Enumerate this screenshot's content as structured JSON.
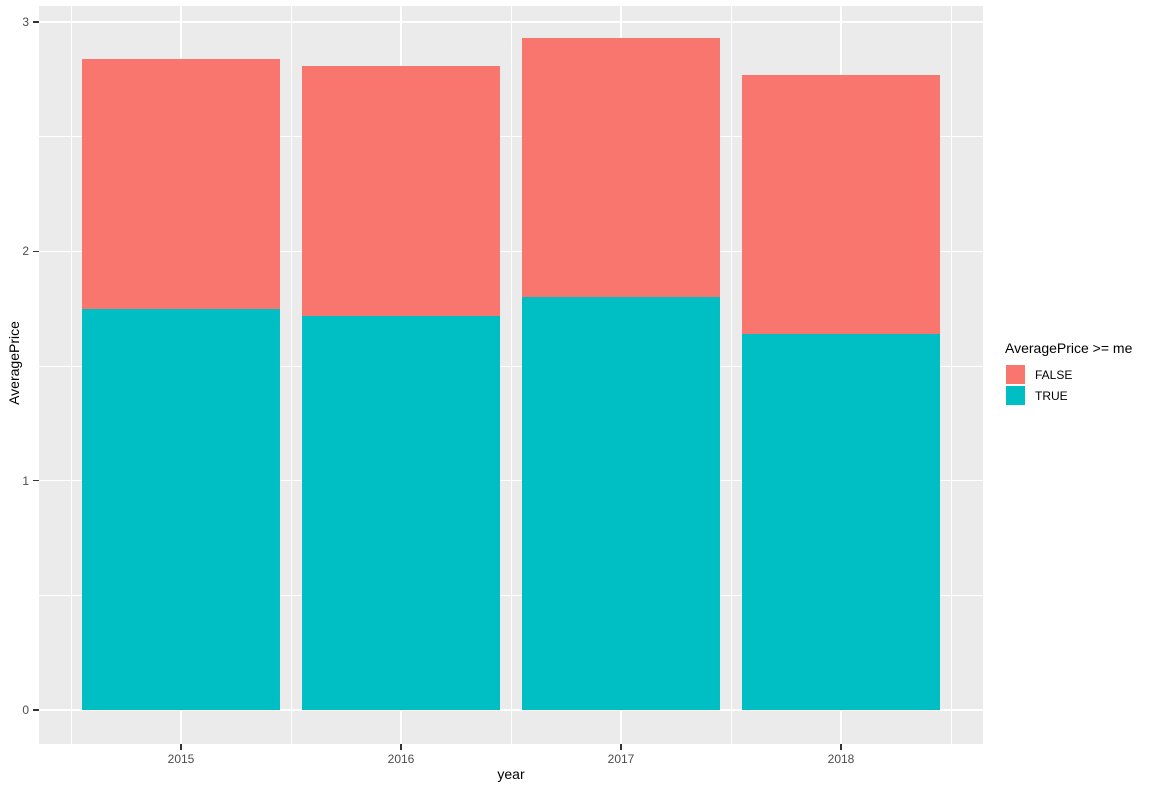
{
  "chart_data": {
    "type": "bar",
    "variant": "stacked",
    "title": "",
    "xlabel": "year",
    "ylabel": "AveragePrice",
    "categories": [
      "2015",
      "2016",
      "2017",
      "2018"
    ],
    "series": [
      {
        "name": "TRUE",
        "color": "#00BFC4",
        "values": [
          1.75,
          1.72,
          1.8,
          1.64
        ]
      },
      {
        "name": "FALSE",
        "color": "#F8766D",
        "values": [
          1.09,
          1.09,
          1.13,
          1.13
        ]
      }
    ],
    "stack_totals": [
      2.84,
      2.81,
      2.93,
      2.77
    ],
    "stack_order_bottom_to_top": [
      "TRUE",
      "FALSE"
    ],
    "y_ticks": [
      0,
      1,
      2,
      3
    ],
    "y_minor_ticks": [
      0.5,
      1.5,
      2.5
    ],
    "ylim": [
      -0.15,
      3.07
    ],
    "grid": true,
    "legend": {
      "title": "AveragePrice >= me",
      "position": "right",
      "entries": [
        {
          "label": "FALSE",
          "color": "#F8766D"
        },
        {
          "label": "TRUE",
          "color": "#00BFC4"
        }
      ]
    },
    "colors": {
      "panel_background": "#EBEBEB",
      "grid": "#FFFFFF",
      "tick": "#333333",
      "tick_label": "#4D4D4D",
      "axis_title": "#000000"
    }
  }
}
